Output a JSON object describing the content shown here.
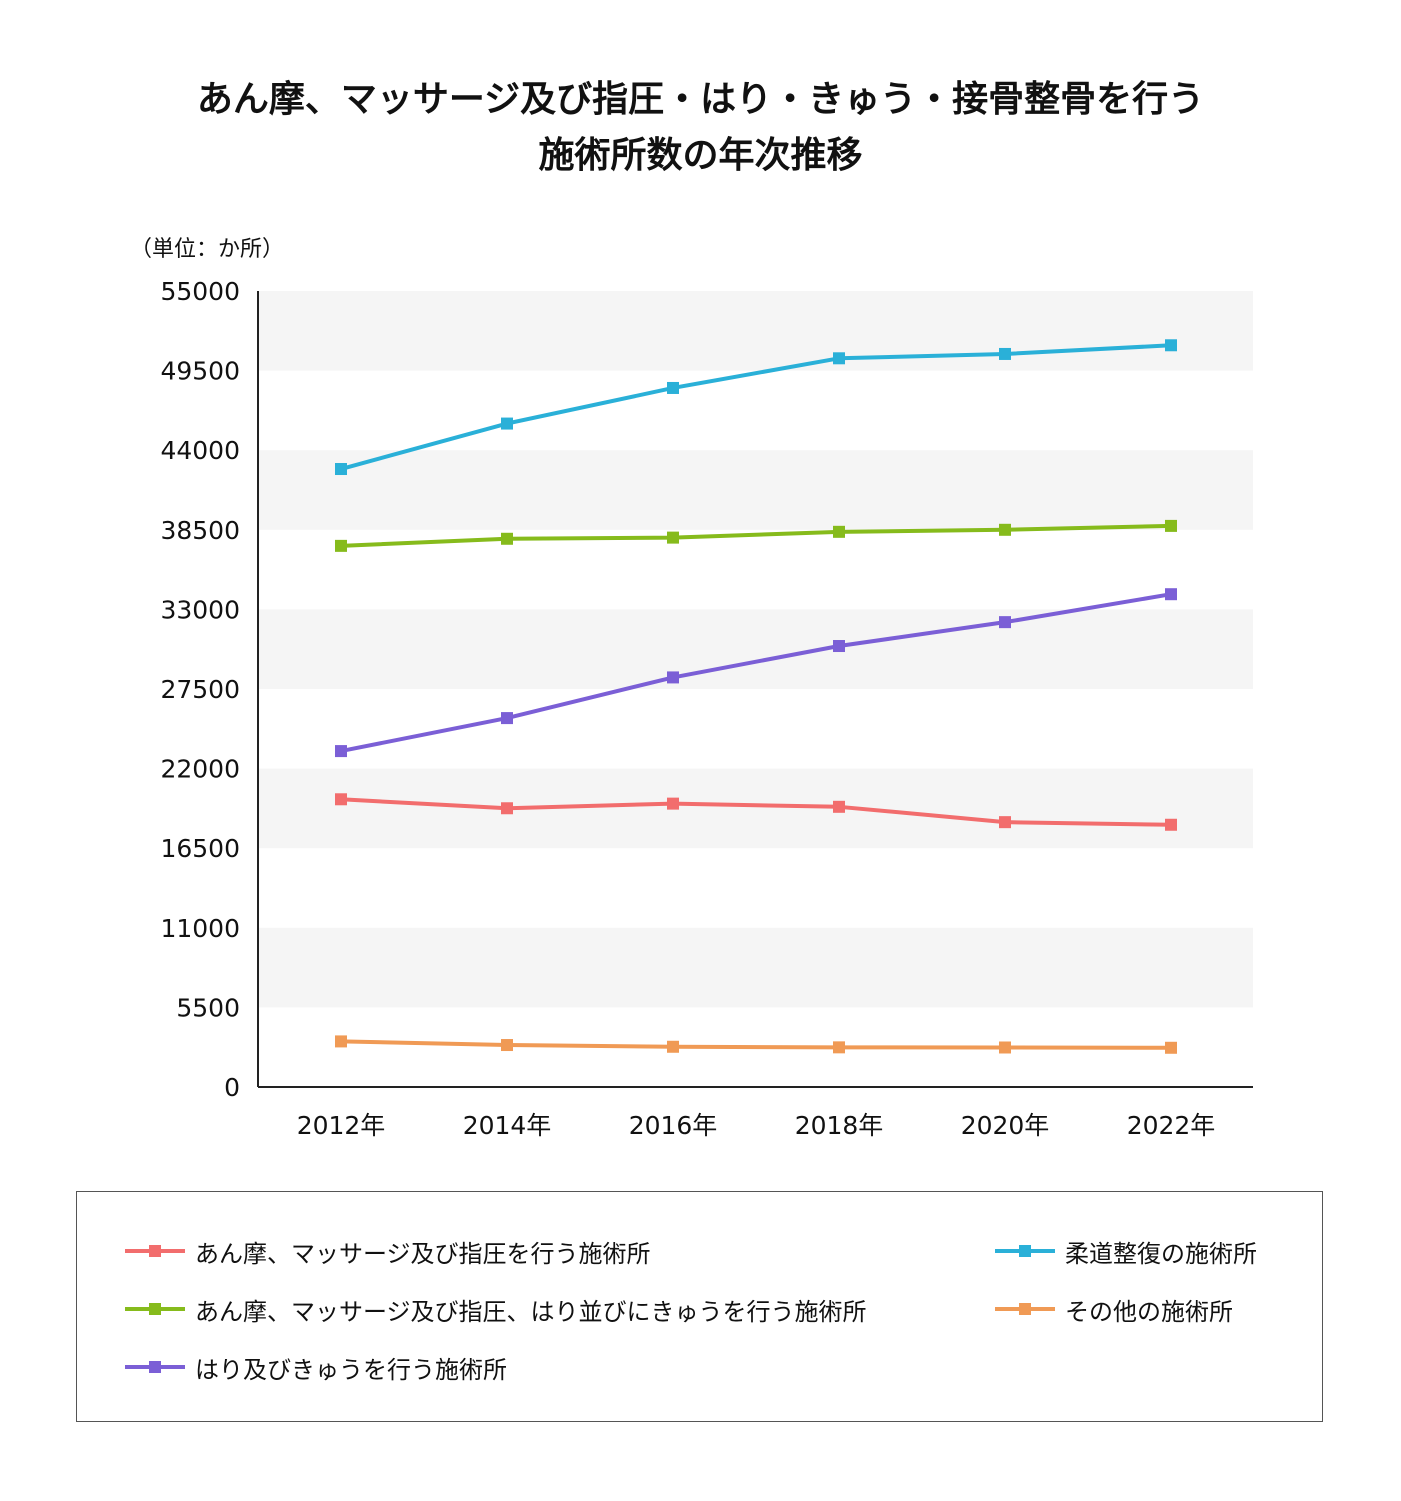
{
  "chart_data": {
    "type": "line",
    "title": [
      "あん摩、マッサージ及び指圧・はり・きゅう・接骨整骨を行う",
      "施術所数の年次推移"
    ],
    "unit_label": "（単位：か所）",
    "categories": [
      "2012年",
      "2014年",
      "2016年",
      "2018年",
      "2020年",
      "2022年"
    ],
    "ylim": [
      0,
      55000
    ],
    "yticks": [
      0,
      5500,
      11000,
      16500,
      22000,
      27500,
      33000,
      38500,
      44000,
      49500,
      55000
    ],
    "grid": "alternating horizontal bands",
    "legend_position": "bottom",
    "series": [
      {
        "name": "あん摩、マッサージ及び指圧を行う施術所",
        "color": "#f26d6d",
        "values": [
          19880,
          19260,
          19580,
          19360,
          18300,
          18120
        ]
      },
      {
        "name": "あん摩、マッサージ及び指圧、はり並びにきゅうを行う施術所",
        "color": "#86bb1c",
        "values": [
          37390,
          37880,
          37960,
          38360,
          38500,
          38770
        ]
      },
      {
        "name": "はり及びきゅうを行う施術所",
        "color": "#7b5fd6",
        "values": [
          23210,
          25490,
          28300,
          30470,
          32120,
          34050
        ]
      },
      {
        "name": "柔道整復の施術所",
        "color": "#2ab0d8",
        "values": [
          42700,
          45840,
          48300,
          50350,
          50650,
          51250
        ]
      },
      {
        "name": "その他の施術所",
        "color": "#f09a55",
        "values": [
          3150,
          2900,
          2780,
          2740,
          2730,
          2710
        ]
      }
    ]
  }
}
